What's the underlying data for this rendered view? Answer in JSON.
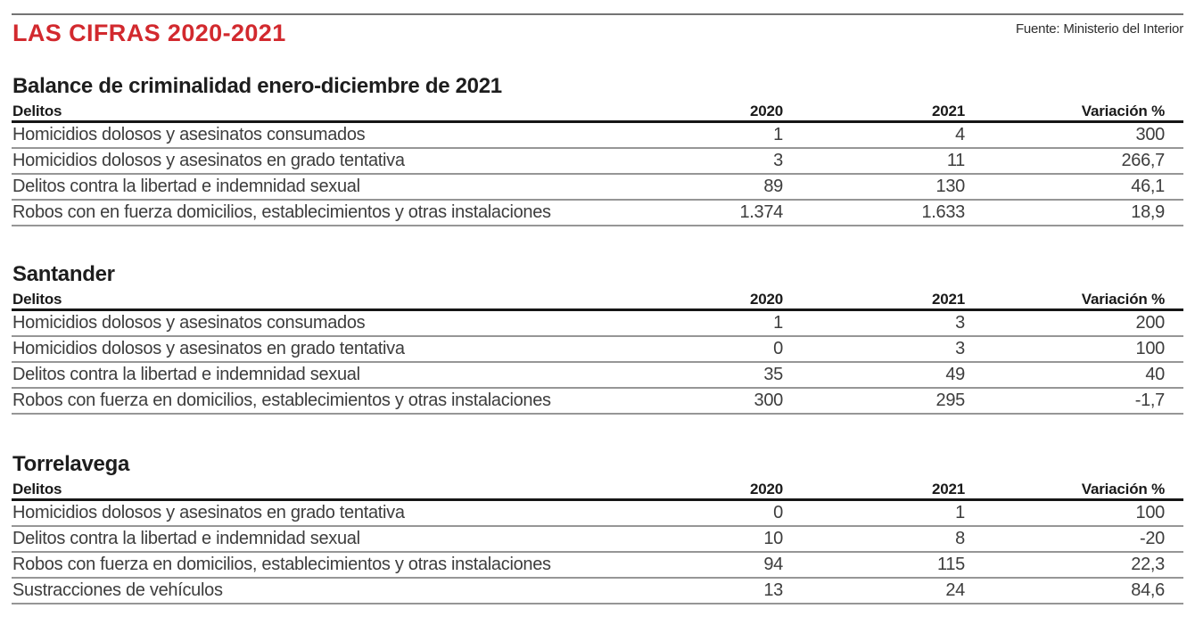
{
  "masthead": {
    "title": "LAS CIFRAS 2020-2021",
    "source": "Fuente: Ministerio del Interior"
  },
  "columns": [
    "Delitos",
    "2020",
    "2021",
    "Variación %"
  ],
  "sections": [
    {
      "title": "Balance de criminalidad enero-diciembre de 2021",
      "rows": [
        {
          "delito": "Homicidios dolosos y asesinatos consumados",
          "y2020": "1",
          "y2021": "4",
          "variacion": "300"
        },
        {
          "delito": "Homicidios dolosos y asesinatos en grado tentativa",
          "y2020": "3",
          "y2021": "11",
          "variacion": "266,7"
        },
        {
          "delito": "Delitos contra la libertad e indemnidad sexual",
          "y2020": "89",
          "y2021": "130",
          "variacion": "46,1"
        },
        {
          "delito": "Robos con en fuerza domicilios, establecimientos y otras instalaciones",
          "y2020": "1.374",
          "y2021": "1.633",
          "variacion": "18,9"
        }
      ]
    },
    {
      "title": "Santander",
      "rows": [
        {
          "delito": "Homicidios dolosos y asesinatos consumados",
          "y2020": "1",
          "y2021": "3",
          "variacion": "200"
        },
        {
          "delito": "Homicidios dolosos y asesinatos en grado tentativa",
          "y2020": "0",
          "y2021": "3",
          "variacion": "100"
        },
        {
          "delito": "Delitos contra la libertad e indemnidad sexual",
          "y2020": "35",
          "y2021": "49",
          "variacion": "40"
        },
        {
          "delito": "Robos con fuerza en domicilios, establecimientos y otras instalaciones",
          "y2020": "300",
          "y2021": "295",
          "variacion": "-1,7"
        }
      ]
    },
    {
      "title": "Torrelavega",
      "rows": [
        {
          "delito": "Homicidios dolosos y asesinatos en grado tentativa",
          "y2020": "0",
          "y2021": "1",
          "variacion": "100"
        },
        {
          "delito": "Delitos contra la libertad e indemnidad sexual",
          "y2020": "10",
          "y2021": "8",
          "variacion": "-20"
        },
        {
          "delito": "Robos con fuerza en domicilios, establecimientos y otras instalaciones",
          "y2020": "94",
          "y2021": "115",
          "variacion": "22,3"
        },
        {
          "delito": "Sustracciones de vehículos",
          "y2020": "13",
          "y2021": "24",
          "variacion": "84,6"
        }
      ]
    }
  ],
  "chart_data": [
    {
      "type": "table",
      "title": "Balance de criminalidad enero-diciembre de 2021",
      "columns": [
        "Delitos",
        "2020",
        "2021",
        "Variación %"
      ],
      "rows": [
        [
          "Homicidios dolosos y asesinatos consumados",
          1,
          4,
          300
        ],
        [
          "Homicidios dolosos y asesinatos en grado tentativa",
          3,
          11,
          266.7
        ],
        [
          "Delitos contra la libertad e indemnidad sexual",
          89,
          130,
          46.1
        ],
        [
          "Robos con en fuerza domicilios, establecimientos y otras instalaciones",
          1374,
          1633,
          18.9
        ]
      ]
    },
    {
      "type": "table",
      "title": "Santander",
      "columns": [
        "Delitos",
        "2020",
        "2021",
        "Variación %"
      ],
      "rows": [
        [
          "Homicidios dolosos y asesinatos consumados",
          1,
          3,
          200
        ],
        [
          "Homicidios dolosos y asesinatos en grado tentativa",
          0,
          3,
          100
        ],
        [
          "Delitos contra la libertad e indemnidad sexual",
          35,
          49,
          40
        ],
        [
          "Robos con fuerza en domicilios, establecimientos y otras instalaciones",
          300,
          295,
          -1.7
        ]
      ]
    },
    {
      "type": "table",
      "title": "Torrelavega",
      "columns": [
        "Delitos",
        "2020",
        "2021",
        "Variación %"
      ],
      "rows": [
        [
          "Homicidios dolosos y asesinatos en grado tentativa",
          0,
          1,
          100
        ],
        [
          "Delitos contra la libertad e indemnidad sexual",
          10,
          8,
          -20
        ],
        [
          "Robos con fuerza en domicilios, establecimientos y otras instalaciones",
          94,
          115,
          22.3
        ],
        [
          "Sustracciones de vehículos",
          13,
          24,
          84.6
        ]
      ]
    }
  ],
  "colors": {
    "accent_red": "#d2292e",
    "header_rule_black": "#161616",
    "row_rule_gray": "#969696",
    "top_rule_gray": "#747474",
    "row_text": "#3d3d3d"
  }
}
